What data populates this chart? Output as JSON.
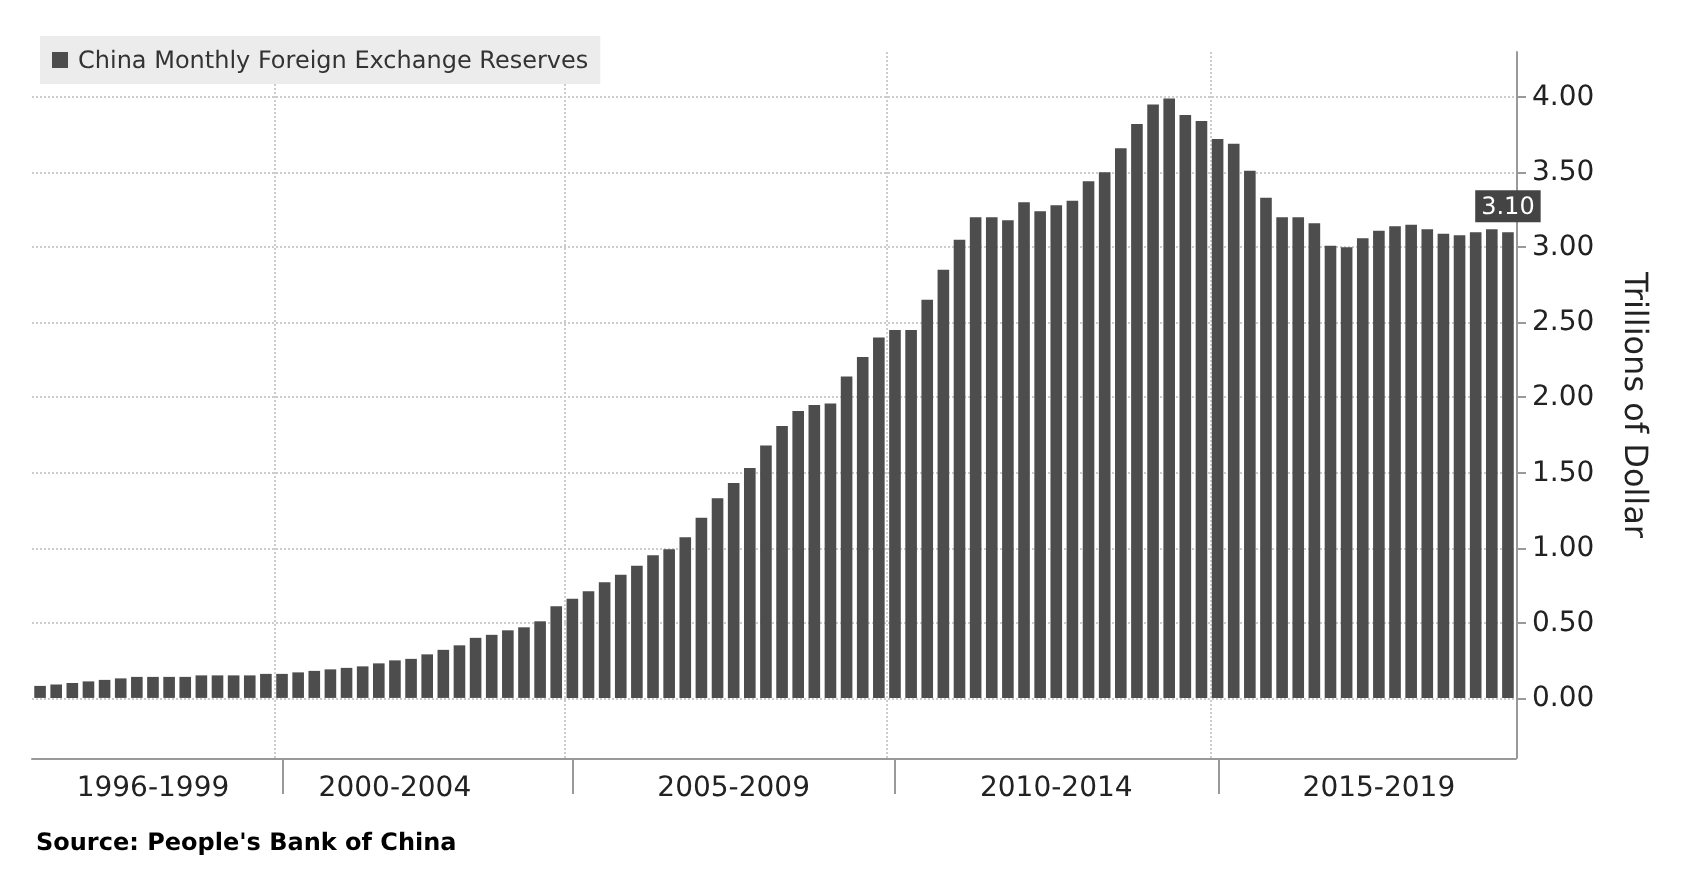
{
  "chart_data": {
    "type": "bar",
    "categories": [
      null,
      null,
      null,
      null,
      null,
      null,
      null,
      "1996-1999",
      null,
      null,
      null,
      null,
      null,
      null,
      null,
      null,
      null,
      null,
      null,
      null,
      null,
      null,
      "2000-2004",
      null,
      null,
      null,
      null,
      null,
      null,
      null,
      null,
      null,
      null,
      null,
      null,
      null,
      null,
      null,
      null,
      null,
      null,
      null,
      null,
      "2005-2009",
      null,
      null,
      null,
      null,
      null,
      null,
      null,
      null,
      null,
      null,
      null,
      null,
      null,
      null,
      null,
      null,
      null,
      null,
      null,
      "2010-2014",
      null,
      null,
      null,
      null,
      null,
      null,
      null,
      null,
      null,
      null,
      null,
      null,
      null,
      null,
      null,
      null,
      null,
      null,
      null,
      "2015-2019",
      null,
      null,
      null,
      null,
      null,
      null,
      null,
      null
    ],
    "series": [
      {
        "name": "China Monthly Foreign Exchange Reserves",
        "color": "#4d4d4d",
        "values": [
          0.08,
          0.09,
          0.1,
          0.11,
          0.12,
          0.13,
          0.14,
          0.14,
          0.14,
          0.14,
          0.15,
          0.15,
          0.15,
          0.15,
          0.16,
          0.16,
          0.17,
          0.18,
          0.19,
          0.2,
          0.21,
          0.23,
          0.25,
          0.26,
          0.29,
          0.32,
          0.35,
          0.4,
          0.42,
          0.45,
          0.47,
          0.51,
          0.61,
          0.66,
          0.71,
          0.77,
          0.82,
          0.88,
          0.95,
          0.99,
          1.07,
          1.2,
          1.33,
          1.43,
          1.53,
          1.68,
          1.81,
          1.91,
          1.95,
          1.96,
          2.14,
          2.27,
          2.4,
          2.45,
          2.45,
          2.65,
          2.85,
          3.05,
          3.2,
          3.2,
          3.18,
          3.3,
          3.24,
          3.28,
          3.31,
          3.44,
          3.5,
          3.66,
          3.82,
          3.95,
          3.99,
          3.88,
          3.84,
          3.72,
          3.69,
          3.51,
          3.33,
          3.2,
          3.2,
          3.16,
          3.01,
          3.0,
          3.06,
          3.11,
          3.14,
          3.15,
          3.12,
          3.09,
          3.08,
          3.1,
          3.12,
          3.1
        ],
        "value_labels": [
          null,
          null,
          null,
          null,
          null,
          null,
          null,
          null,
          null,
          null,
          null,
          null,
          null,
          null,
          null,
          null,
          null,
          null,
          null,
          null,
          null,
          null,
          null,
          null,
          null,
          null,
          null,
          null,
          null,
          null,
          null,
          null,
          null,
          null,
          null,
          null,
          null,
          null,
          null,
          null,
          null,
          null,
          null,
          null,
          null,
          null,
          null,
          null,
          null,
          null,
          null,
          null,
          null,
          null,
          null,
          null,
          null,
          null,
          null,
          null,
          null,
          null,
          null,
          null,
          null,
          null,
          null,
          null,
          null,
          null,
          null,
          null,
          null,
          null,
          null,
          null,
          null,
          null,
          null,
          null,
          null,
          null,
          null,
          null,
          null,
          null,
          null,
          null,
          null,
          null,
          null,
          "3.10"
        ]
      }
    ],
    "ylabel": "Trillions of Dollar",
    "ylim": [
      -0.4,
      4.3
    ],
    "yticks": [
      {
        "value": 0,
        "label": "0.00"
      },
      {
        "value": 0.5,
        "label": "0.50"
      },
      {
        "value": 1,
        "label": "1.00"
      },
      {
        "value": 1.5,
        "label": "1.50"
      },
      {
        "value": 2,
        "label": "2.00"
      },
      {
        "value": 2.5,
        "label": "2.50"
      },
      {
        "value": 3,
        "label": "3.00"
      },
      {
        "value": 3.5,
        "label": "3.50"
      },
      {
        "value": 4,
        "label": "4.00"
      }
    ],
    "grid": true,
    "legend": "top left",
    "annotations": [
      "Source: People's Bank of China"
    ]
  }
}
